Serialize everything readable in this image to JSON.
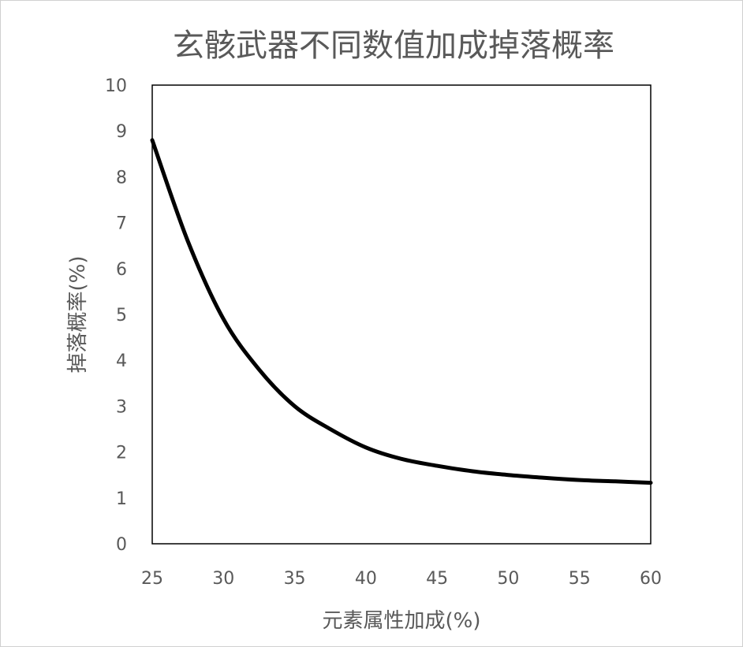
{
  "chart_data": {
    "type": "line",
    "title": "玄骸武器不同数值加成掉落概率",
    "xlabel": "元素属性加成(%)",
    "ylabel": "掉落概率(%)",
    "xlim": [
      25,
      60
    ],
    "ylim": [
      0,
      10
    ],
    "xticks": [
      25,
      30,
      35,
      40,
      45,
      50,
      55,
      60
    ],
    "yticks": [
      0,
      1,
      2,
      3,
      4,
      5,
      6,
      7,
      8,
      9,
      10
    ],
    "grid": false,
    "legend": "none",
    "series": [
      {
        "x": [
          25,
          27.5,
          30,
          32.5,
          35,
          37.5,
          40,
          42.5,
          45,
          47.5,
          50,
          52.5,
          55,
          57.5,
          60
        ],
        "y": [
          8.8,
          6.6,
          4.9,
          3.8,
          3.0,
          2.5,
          2.1,
          1.85,
          1.7,
          1.58,
          1.5,
          1.44,
          1.39,
          1.36,
          1.33
        ],
        "color": "#000000"
      }
    ]
  }
}
